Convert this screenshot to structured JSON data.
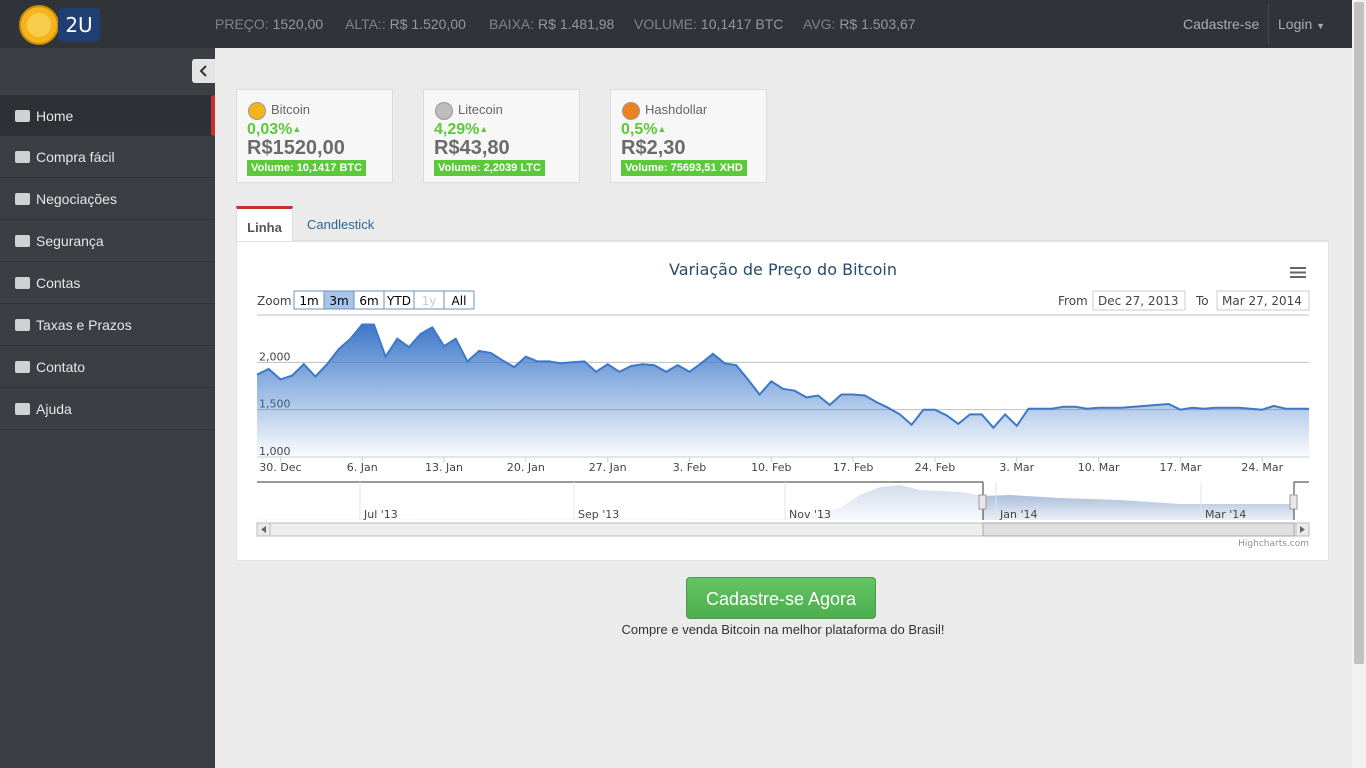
{
  "header": {
    "logo": "2U",
    "ticker": [
      {
        "label": "PREÇO:",
        "value": "1520,00"
      },
      {
        "label": "ALTA::",
        "value": "R$ 1.520,00"
      },
      {
        "label": "BAIXA:",
        "value": "R$ 1.481,98"
      },
      {
        "label": "VOLUME:",
        "value": "10,1417 BTC"
      },
      {
        "label": "AVG:",
        "value": "R$ 1.503,67"
      }
    ],
    "nav": [
      "Cadastre-se",
      "Login"
    ]
  },
  "sidebar": {
    "menu": [
      "Home",
      "Compra fácil",
      "Negociações",
      "Segurança",
      "Contas",
      "Taxas e Prazos",
      "Contato",
      "Ajuda"
    ]
  },
  "cards": [
    {
      "name": "Bitcoin",
      "change": "0,03%",
      "price": "R$1520,00",
      "volume": "Volume: 10,1417 BTC"
    },
    {
      "name": "Litecoin",
      "change": "4,29%",
      "price": "R$43,80",
      "volume": "Volume: 2,2039 LTC"
    },
    {
      "name": "Hashdollar",
      "change": "0,5%",
      "price": "R$2,30",
      "volume": "Volume: 75693,51 XHD"
    }
  ],
  "tabs": [
    "Linha",
    "Candlestick"
  ],
  "chart_data": {
    "type": "area",
    "title": "Variação de Preço do Bitcoin",
    "color": "#3d78c9",
    "zoom_label": "Zoom",
    "zoom_buttons": [
      "1m",
      "3m",
      "6m",
      "YTD",
      "1y",
      "All"
    ],
    "zoom_selected": 1,
    "zoom_disabled": 4,
    "from_label": "From",
    "from": "Dec 27, 2013",
    "to_label": "To",
    "to": "Mar 27, 2014",
    "categories": [
      null,
      null,
      "30. Dec",
      null,
      null,
      null,
      null,
      null,
      null,
      "6. Jan",
      null,
      null,
      null,
      null,
      null,
      null,
      "13. Jan",
      null,
      null,
      null,
      null,
      null,
      null,
      "20. Jan",
      null,
      null,
      null,
      null,
      null,
      null,
      "27. Jan",
      null,
      null,
      null,
      null,
      null,
      null,
      "3. Feb",
      null,
      null,
      null,
      null,
      null,
      null,
      "10. Feb",
      null,
      null,
      null,
      null,
      null,
      null,
      "17. Feb",
      null,
      null,
      null,
      null,
      null,
      null,
      "24. Feb",
      null,
      null,
      null,
      null,
      null,
      null,
      "3. Mar",
      null,
      null,
      null,
      null,
      null,
      null,
      "10. Mar",
      null,
      null,
      null,
      null,
      null,
      null,
      "17. Mar",
      null,
      null,
      null,
      null,
      null,
      null,
      "24. Mar",
      null,
      null,
      null,
      null
    ],
    "values": [
      1870,
      1930,
      1820,
      1860,
      1980,
      1850,
      1980,
      2140,
      2250,
      2400,
      2400,
      2060,
      2250,
      2160,
      2300,
      2370,
      2170,
      2250,
      2010,
      2120,
      2100,
      2020,
      1950,
      2060,
      2010,
      2010,
      1990,
      2000,
      2010,
      1900,
      1980,
      1900,
      1960,
      1980,
      1970,
      1900,
      1970,
      1900,
      1990,
      2090,
      1990,
      1970,
      1820,
      1660,
      1800,
      1720,
      1700,
      1630,
      1650,
      1550,
      1660,
      1660,
      1650,
      1580,
      1520,
      1450,
      1340,
      1500,
      1500,
      1440,
      1350,
      1450,
      1450,
      1310,
      1450,
      1330,
      1510,
      1510,
      1510,
      1530,
      1530,
      1510,
      1520,
      1520,
      1520,
      1530,
      1540,
      1550,
      1560,
      1500,
      1520,
      1510,
      1520,
      1520,
      1520,
      1510,
      1500,
      1540,
      1510,
      1510,
      1510
    ],
    "ylim": [
      1000,
      2500
    ],
    "yticks": [
      {
        "value": 1000,
        "label": "1,000"
      },
      {
        "value": 1500,
        "label": "1,500"
      },
      {
        "value": 2000,
        "label": "2,000"
      }
    ],
    "grid": true,
    "navigator_labels": [
      "Jul '13",
      "Sep '13",
      "Nov '13",
      "Jan '14",
      "Mar '14"
    ],
    "credits": "Highcharts.com"
  },
  "cta": {
    "button": "Cadastre-se Agora",
    "tagline": "Compre e venda Bitcoin na melhor plataforma do Brasil!"
  }
}
